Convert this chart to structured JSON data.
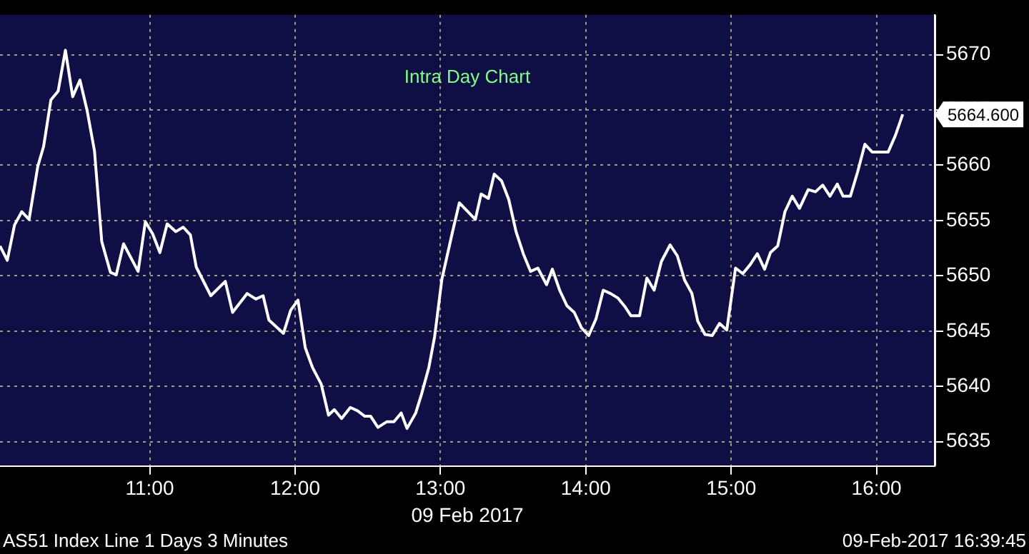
{
  "chart_data": {
    "type": "line",
    "title": "Intra Day Chart",
    "xlabel": "09 Feb 2017",
    "x": [
      9.97,
      10.02,
      10.07,
      10.12,
      10.17,
      10.23,
      10.27,
      10.32,
      10.37,
      10.42,
      10.47,
      10.52,
      10.57,
      10.62,
      10.67,
      10.73,
      10.77,
      10.82,
      10.92,
      10.97,
      11.02,
      11.07,
      11.12,
      11.18,
      11.23,
      11.28,
      11.32,
      11.42,
      11.52,
      11.57,
      11.67,
      11.73,
      11.78,
      11.82,
      11.92,
      11.97,
      12.02,
      12.07,
      12.12,
      12.18,
      12.23,
      12.27,
      12.32,
      12.38,
      12.43,
      12.48,
      12.52,
      12.57,
      12.63,
      12.68,
      12.73,
      12.77,
      12.83,
      12.87,
      12.92,
      12.96,
      13.01,
      13.08,
      13.13,
      13.24,
      13.28,
      13.33,
      13.37,
      13.42,
      13.47,
      13.52,
      13.57,
      13.62,
      13.67,
      13.73,
      13.77,
      13.82,
      13.87,
      13.92,
      13.97,
      14.02,
      14.07,
      14.12,
      14.17,
      14.22,
      14.27,
      14.31,
      14.37,
      14.42,
      14.47,
      14.52,
      14.58,
      14.63,
      14.68,
      14.73,
      14.77,
      14.82,
      14.87,
      14.92,
      14.97,
      15.03,
      15.08,
      15.13,
      15.18,
      15.23,
      15.27,
      15.32,
      15.37,
      15.42,
      15.47,
      15.53,
      15.58,
      15.63,
      15.68,
      15.73,
      15.77,
      15.82,
      15.87,
      15.92,
      15.97,
      16.08,
      16.13,
      16.18
    ],
    "series": [
      {
        "color": "#ffffff",
        "values": [
          5652.7,
          5651.4,
          5654.6,
          5655.8,
          5655.1,
          5659.9,
          5661.7,
          5665.9,
          5666.7,
          5670.4,
          5666.2,
          5667.7,
          5664.9,
          5661.3,
          5653.1,
          5650.3,
          5650.1,
          5652.9,
          5650.4,
          5654.9,
          5653.8,
          5652.1,
          5654.7,
          5654.0,
          5654.4,
          5653.7,
          5650.8,
          5648.2,
          5649.5,
          5646.7,
          5648.4,
          5647.9,
          5648.2,
          5646.0,
          5644.8,
          5646.9,
          5647.8,
          5643.5,
          5641.7,
          5640.2,
          5637.4,
          5637.9,
          5637.1,
          5638.1,
          5637.8,
          5637.3,
          5637.3,
          5636.3,
          5636.8,
          5636.8,
          5637.6,
          5636.2,
          5637.6,
          5639.3,
          5641.7,
          5644.5,
          5649.7,
          5653.8,
          5656.6,
          5655.1,
          5657.4,
          5657.0,
          5659.2,
          5658.6,
          5656.9,
          5654.0,
          5652.0,
          5650.4,
          5650.7,
          5649.2,
          5650.6,
          5648.7,
          5647.3,
          5646.7,
          5645.3,
          5644.6,
          5646.1,
          5648.7,
          5648.4,
          5648.0,
          5647.2,
          5646.4,
          5646.4,
          5649.8,
          5648.7,
          5651.3,
          5652.8,
          5651.8,
          5649.6,
          5648.4,
          5645.9,
          5644.7,
          5644.6,
          5645.7,
          5645.1,
          5650.7,
          5650.2,
          5651.0,
          5652.0,
          5650.6,
          5652.1,
          5652.7,
          5655.8,
          5657.2,
          5656.1,
          5657.8,
          5657.6,
          5658.2,
          5657.2,
          5658.3,
          5657.2,
          5657.2,
          5659.4,
          5661.9,
          5661.2,
          5661.2,
          5662.7,
          5664.6
        ]
      }
    ],
    "xlim": [
      9.97,
      16.4
    ],
    "ylim": [
      5632.8,
      5673.6
    ],
    "xticks": [
      {
        "value": 11,
        "label": "11:00"
      },
      {
        "value": 12,
        "label": "12:00"
      },
      {
        "value": 13,
        "label": "13:00"
      },
      {
        "value": 14,
        "label": "14:00"
      },
      {
        "value": 15,
        "label": "15:00"
      },
      {
        "value": 16,
        "label": "16:00"
      }
    ],
    "yticks": [
      5635,
      5640,
      5645,
      5650,
      5655,
      5660,
      5665,
      5670
    ],
    "grid": true,
    "legend": false,
    "marker": "none",
    "line_style": "solid",
    "annotations": [
      {
        "text": "5664.600",
        "x": 16.18,
        "y": 5664.6
      },
      "AS51 Index Line 1 Days 3 Minutes",
      "09-Feb-2017 16:39:45"
    ]
  }
}
